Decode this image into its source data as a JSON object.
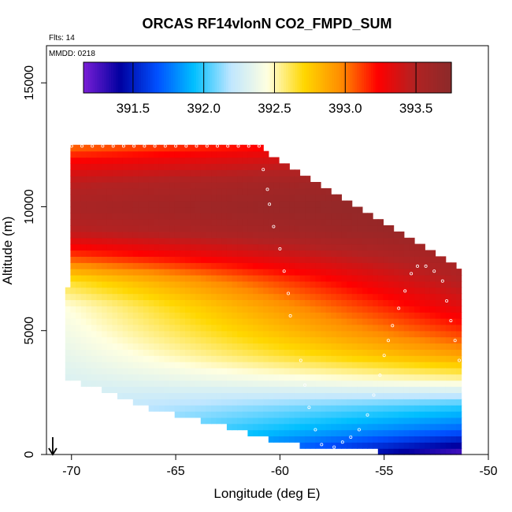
{
  "chart_data": {
    "type": "heatmap",
    "title": "ORCAS RF14vlonN CO2_FMPD_SUM",
    "flights_note": "Flts: 14",
    "date_note": "MMDD: 0218",
    "xlabel": "Longitude (deg E)",
    "ylabel": "Altitude (m)",
    "xlim": [
      -71.2,
      -50
    ],
    "ylim": [
      0,
      16500
    ],
    "xticks": [
      -70,
      -65,
      -60,
      -55,
      -50
    ],
    "xtick_labels": [
      "-70",
      "-65",
      "-60",
      "-55",
      "-50"
    ],
    "yticks": [
      0,
      5000,
      10000,
      15000
    ],
    "ytick_labels": [
      "0",
      "5000",
      "10000",
      "15000"
    ],
    "colorbar": {
      "range": [
        391.15,
        393.75
      ],
      "ticks": [
        391.5,
        392.0,
        392.5,
        393.0,
        393.5
      ],
      "tick_labels": [
        "391.5",
        "392.0",
        "392.5",
        "393.0",
        "393.5"
      ],
      "colors": [
        "#7a1fd6",
        "#0000a0",
        "#0050ff",
        "#00bfff",
        "#bfe6ff",
        "#ffffe0",
        "#ffd700",
        "#ff8c00",
        "#ff0000",
        "#b22222",
        "#8b2a2a"
      ]
    },
    "field_outline": {
      "top": [
        [
          -70.0,
          12500
        ],
        [
          -61.0,
          12500
        ],
        [
          -60.2,
          11900
        ],
        [
          -51.3,
          7500
        ],
        [
          -51.3,
          0
        ]
      ],
      "bottom": [
        [
          -70.3,
          3000
        ],
        [
          -69.0,
          2800
        ],
        [
          -67.5,
          2300
        ],
        [
          -66.0,
          1800
        ],
        [
          -64.0,
          1400
        ],
        [
          -62.0,
          1000
        ],
        [
          -60.0,
          500
        ],
        [
          -58.0,
          200
        ],
        [
          -51.0,
          0
        ]
      ],
      "left": [
        [
          -70.3,
          6800
        ],
        [
          -70.0,
          11000
        ]
      ]
    },
    "value_profile": [
      {
        "alt": 0,
        "west": 392.2,
        "east": 391.2
      },
      {
        "alt": 1000,
        "west": 392.2,
        "east": 391.7
      },
      {
        "alt": 2000,
        "west": 392.25,
        "east": 392.0
      },
      {
        "alt": 3000,
        "west": 392.3,
        "east": 392.5
      },
      {
        "alt": 4000,
        "west": 392.35,
        "east": 392.9
      },
      {
        "alt": 5000,
        "west": 392.4,
        "east": 393.15
      },
      {
        "alt": 6000,
        "west": 392.45,
        "east": 393.35
      },
      {
        "alt": 7000,
        "west": 392.65,
        "east": 393.5
      },
      {
        "alt": 8000,
        "west": 393.1,
        "east": 393.6
      },
      {
        "alt": 9000,
        "west": 393.45,
        "east": 393.7
      },
      {
        "alt": 10000,
        "west": 393.55,
        "east": 393.75
      },
      {
        "alt": 11000,
        "west": 393.45,
        "east": 393.7
      },
      {
        "alt": 12000,
        "west": 393.2,
        "east": 393.5
      },
      {
        "alt": 12500,
        "west": 393.0,
        "east": 393.4
      }
    ],
    "flight_track_points": [
      [
        -70.0,
        12450
      ],
      [
        -69.5,
        12450
      ],
      [
        -69.0,
        12450
      ],
      [
        -68.5,
        12450
      ],
      [
        -68.0,
        12450
      ],
      [
        -67.5,
        12450
      ],
      [
        -67.0,
        12450
      ],
      [
        -66.5,
        12450
      ],
      [
        -66.0,
        12450
      ],
      [
        -65.5,
        12450
      ],
      [
        -65.0,
        12450
      ],
      [
        -64.5,
        12450
      ],
      [
        -64.0,
        12450
      ],
      [
        -63.5,
        12450
      ],
      [
        -63.0,
        12450
      ],
      [
        -62.5,
        12450
      ],
      [
        -62.0,
        12450
      ],
      [
        -61.5,
        12450
      ],
      [
        -61.0,
        12450
      ],
      [
        -60.8,
        11500
      ],
      [
        -60.6,
        10700
      ],
      [
        -60.5,
        10100
      ],
      [
        -60.3,
        9200
      ],
      [
        -60.0,
        8300
      ],
      [
        -59.8,
        7400
      ],
      [
        -59.6,
        6500
      ],
      [
        -59.5,
        5600
      ],
      [
        -59.0,
        3800
      ],
      [
        -58.8,
        2800
      ],
      [
        -58.6,
        1900
      ],
      [
        -58.3,
        1000
      ],
      [
        -58.0,
        400
      ],
      [
        -57.7,
        150
      ],
      [
        -57.4,
        300
      ],
      [
        -57.0,
        500
      ],
      [
        -56.6,
        700
      ],
      [
        -56.2,
        1000
      ],
      [
        -55.8,
        1600
      ],
      [
        -55.5,
        2400
      ],
      [
        -55.2,
        3200
      ],
      [
        -55.0,
        4000
      ],
      [
        -54.8,
        4600
      ],
      [
        -54.6,
        5200
      ],
      [
        -54.3,
        5900
      ],
      [
        -54.0,
        6600
      ],
      [
        -53.7,
        7300
      ],
      [
        -53.4,
        7600
      ],
      [
        -53.0,
        7600
      ],
      [
        -52.6,
        7400
      ],
      [
        -52.2,
        7000
      ],
      [
        -52.0,
        6200
      ],
      [
        -51.8,
        5400
      ],
      [
        -51.6,
        4600
      ],
      [
        -51.4,
        3800
      ],
      [
        -51.2,
        2600
      ],
      [
        -51.0,
        900
      ],
      [
        -50.9,
        100
      ]
    ],
    "arrow": {
      "x": -70.9,
      "from_alt": 700,
      "to_alt": 0
    }
  }
}
